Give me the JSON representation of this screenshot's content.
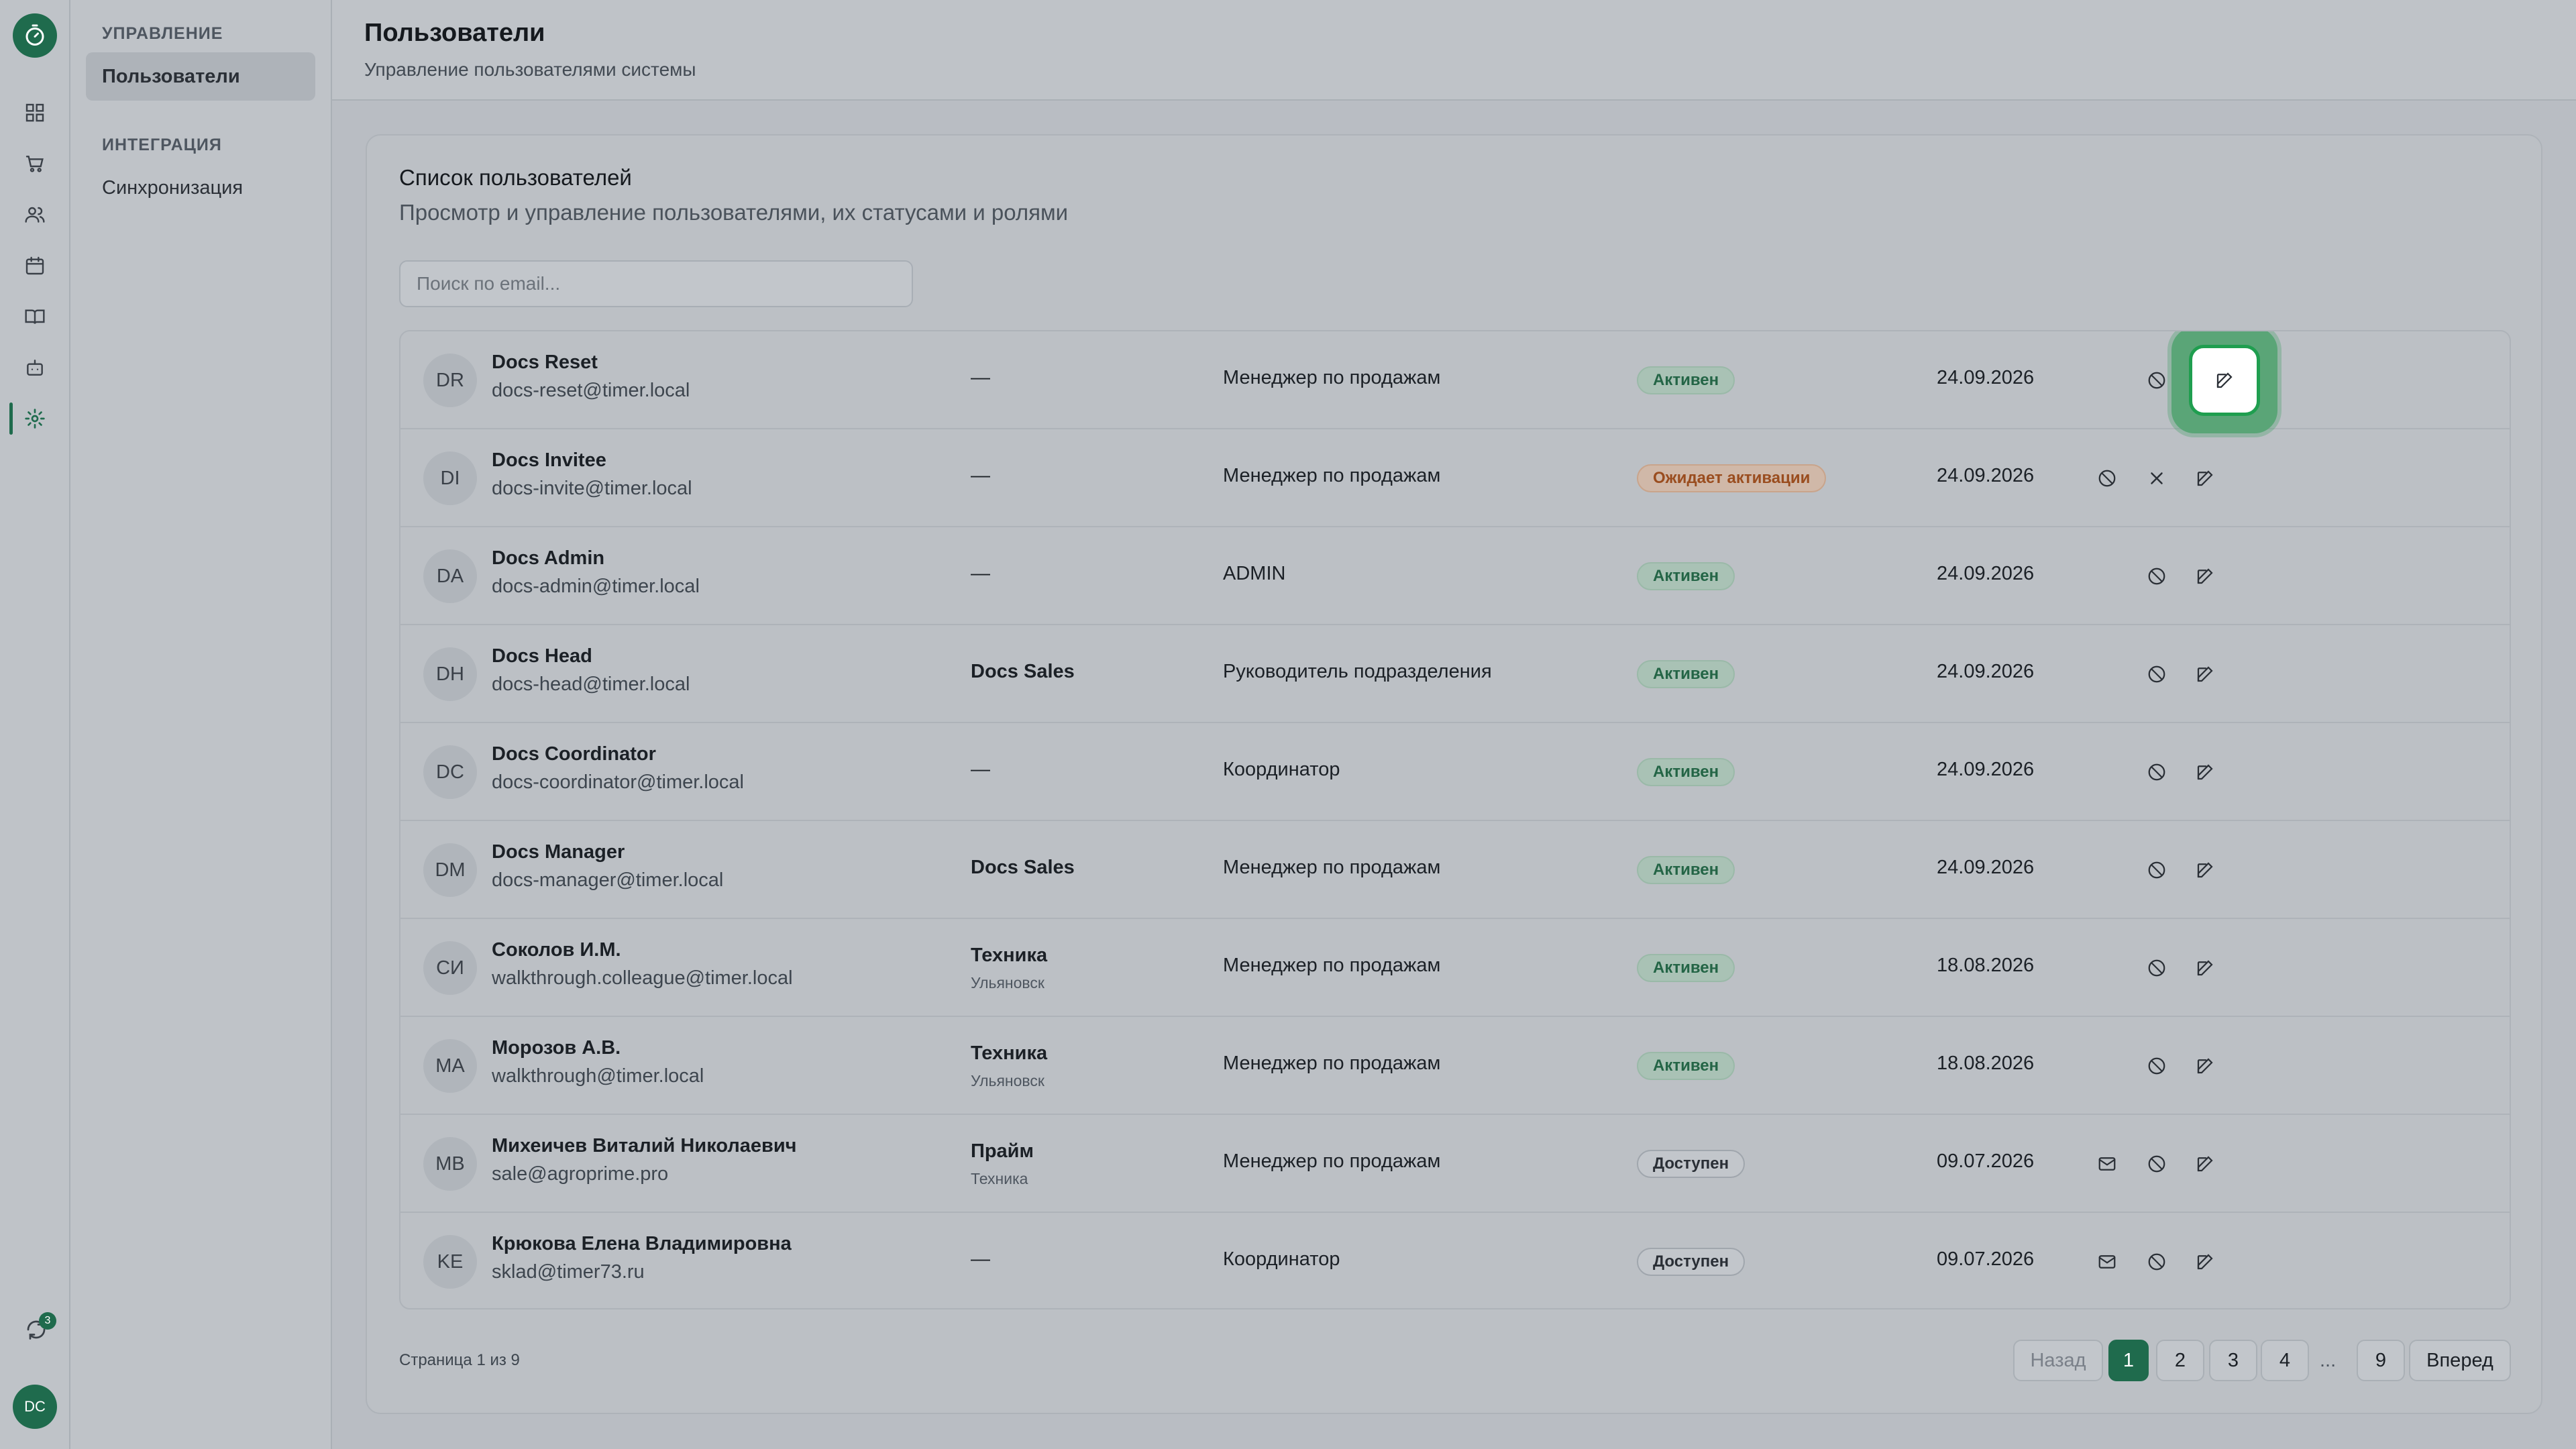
{
  "nav": {
    "sections": [
      {
        "title": "УПРАВЛЕНИЕ",
        "items": [
          {
            "label": "Пользователи",
            "active": true
          }
        ]
      },
      {
        "title": "ИНТЕГРАЦИЯ",
        "items": [
          {
            "label": "Синхронизация",
            "active": false
          }
        ]
      }
    ]
  },
  "rail": {
    "icons": [
      "dashboard-icon",
      "cart-icon",
      "users-icon",
      "calendar-icon",
      "book-icon",
      "bot-icon",
      "gear-icon"
    ],
    "sync_badge": "3",
    "avatar": "DC"
  },
  "header": {
    "title": "Пользователи",
    "subtitle": "Управление пользователями системы"
  },
  "card": {
    "title": "Список пользователей",
    "description": "Просмотр и управление пользователями, их статусами и ролями"
  },
  "search": {
    "placeholder": "Поиск по email..."
  },
  "users": [
    {
      "initials": "DR",
      "name": "Docs Reset",
      "email": "docs-reset@timer.local",
      "dept": "—",
      "dept_sub": "",
      "role": "Менеджер по продажам",
      "status": "Активен",
      "status_type": "active",
      "date": "24.09.2026"
    },
    {
      "initials": "DI",
      "name": "Docs Invitee",
      "email": "docs-invite@timer.local",
      "dept": "—",
      "dept_sub": "",
      "role": "Менеджер по продажам",
      "status": "Ожидает активации",
      "status_type": "pending",
      "date": "24.09.2026"
    },
    {
      "initials": "DA",
      "name": "Docs Admin",
      "email": "docs-admin@timer.local",
      "dept": "—",
      "dept_sub": "",
      "role": "ADMIN",
      "status": "Активен",
      "status_type": "active",
      "date": "24.09.2026"
    },
    {
      "initials": "DH",
      "name": "Docs Head",
      "email": "docs-head@timer.local",
      "dept": "Docs Sales",
      "dept_sub": "",
      "role": "Руководитель подразделения",
      "status": "Активен",
      "status_type": "active",
      "date": "24.09.2026"
    },
    {
      "initials": "DC",
      "name": "Docs Coordinator",
      "email": "docs-coordinator@timer.local",
      "dept": "—",
      "dept_sub": "",
      "role": "Координатор",
      "status": "Активен",
      "status_type": "active",
      "date": "24.09.2026"
    },
    {
      "initials": "DM",
      "name": "Docs Manager",
      "email": "docs-manager@timer.local",
      "dept": "Docs Sales",
      "dept_sub": "",
      "role": "Менеджер по продажам",
      "status": "Активен",
      "status_type": "active",
      "date": "24.09.2026"
    },
    {
      "initials": "СИ",
      "name": "Соколов И.М.",
      "email": "walkthrough.colleague@timer.local",
      "dept": "Техника",
      "dept_sub": "Ульяновск",
      "role": "Менеджер по продажам",
      "status": "Активен",
      "status_type": "active",
      "date": "18.08.2026"
    },
    {
      "initials": "MA",
      "name": "Морозов А.В.",
      "email": "walkthrough@timer.local",
      "dept": "Техника",
      "dept_sub": "Ульяновск",
      "role": "Менеджер по продажам",
      "status": "Активен",
      "status_type": "active",
      "date": "18.08.2026"
    },
    {
      "initials": "MB",
      "name": "Михеичев Виталий Николаевич",
      "email": "sale@agroprime.pro",
      "dept": "Прайм",
      "dept_sub": "Техника",
      "role": "Менеджер по продажам",
      "status": "Доступен",
      "status_type": "available",
      "date": "09.07.2026"
    },
    {
      "initials": "KE",
      "name": "Крюкова Елена Владимировна",
      "email": "sklad@timer73.ru",
      "dept": "—",
      "dept_sub": "",
      "role": "Координатор",
      "status": "Доступен",
      "status_type": "available",
      "date": "09.07.2026"
    }
  ],
  "pagination": {
    "info": "Страница 1 из 9",
    "prev": "Назад",
    "next": "Вперед",
    "pages": [
      "1",
      "2",
      "3",
      "4"
    ],
    "ellipsis": "...",
    "last": "9",
    "current": "1"
  },
  "colors": {
    "accent": "#1f6b4d",
    "active_badge": "#246546",
    "pending_badge": "#9a4d1f",
    "highlight": "#1f9e4f"
  }
}
